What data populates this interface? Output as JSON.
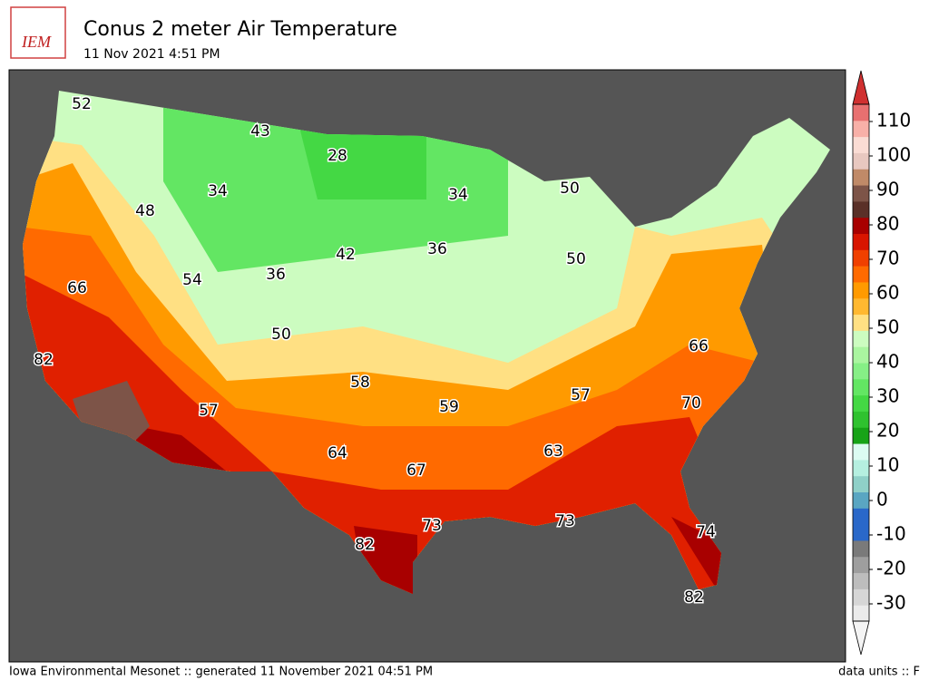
{
  "header": {
    "logo": "IEM",
    "title": "Conus 2 meter Air Temperature",
    "subtitle": "11 Nov 2021 4:51 PM"
  },
  "map": {
    "labels": [
      52,
      43,
      28,
      34,
      48,
      34,
      50,
      42,
      36,
      50,
      54,
      36,
      66,
      50,
      66,
      82,
      58,
      57,
      70,
      59,
      57,
      64,
      63,
      67,
      73,
      73,
      82,
      74,
      82
    ]
  },
  "colorbar": {
    "range": [
      -35,
      115
    ],
    "ticks": [
      -30,
      -20,
      -10,
      0,
      10,
      20,
      30,
      40,
      50,
      60,
      70,
      80,
      90,
      100,
      110
    ],
    "colors": [
      "#ebebeb",
      "#d6d6d6",
      "#bdbdbd",
      "#9e9e9e",
      "#7a7a7a",
      "#2a68c9",
      "#2a68c9",
      "#5aa6c2",
      "#8fd0c8",
      "#b5efe0",
      "#dcfbf2",
      "#17a317",
      "#2fc22f",
      "#44d844",
      "#63e663",
      "#86ef86",
      "#aaf5a0",
      "#ccfcc0",
      "#ffe083",
      "#ffb830",
      "#ff9a00",
      "#ff6a00",
      "#f04000",
      "#d81500",
      "#a80000",
      "#5a3028",
      "#7d5448",
      "#c08a68",
      "#e8c8c0",
      "#fadcd4",
      "#f8b0a8",
      "#e87070"
    ],
    "under_color": "#f4f4f4",
    "over_color": "#d03030"
  },
  "footer": {
    "left": "Iowa Environmental Mesonet :: generated 11 November 2021 04:51 PM",
    "right": "data units :: F"
  }
}
